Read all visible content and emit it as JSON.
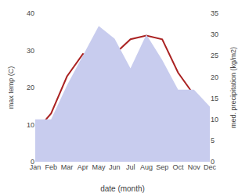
{
  "chart_data": {
    "type": "line",
    "xlabel": "date (month)",
    "ylabel": "max temp (C)",
    "y2label": "med. precipitation (kg/m2)",
    "categories": [
      "Jan",
      "Feb",
      "Mar",
      "Apr",
      "May",
      "Jun",
      "Jul",
      "Aug",
      "Sep",
      "Oct",
      "Nov",
      "Dec"
    ],
    "series": [
      {
        "type": "area",
        "axis": "y2",
        "color": "#c8ccee",
        "values": [
          10,
          10,
          18,
          25,
          32,
          29,
          22,
          30,
          24,
          17,
          17,
          13
        ]
      },
      {
        "type": "line",
        "color": "#aa2222",
        "values": [
          8,
          13,
          23,
          29,
          28,
          29,
          33,
          34,
          33,
          24,
          18,
          13
        ]
      }
    ],
    "ylim": [
      0,
      40
    ],
    "yticks": [
      0,
      10,
      20,
      30,
      40
    ],
    "y2lim": [
      0,
      35
    ],
    "y2ticks": [
      0,
      5,
      10,
      15,
      20,
      25,
      30,
      35
    ],
    "grid": false
  }
}
